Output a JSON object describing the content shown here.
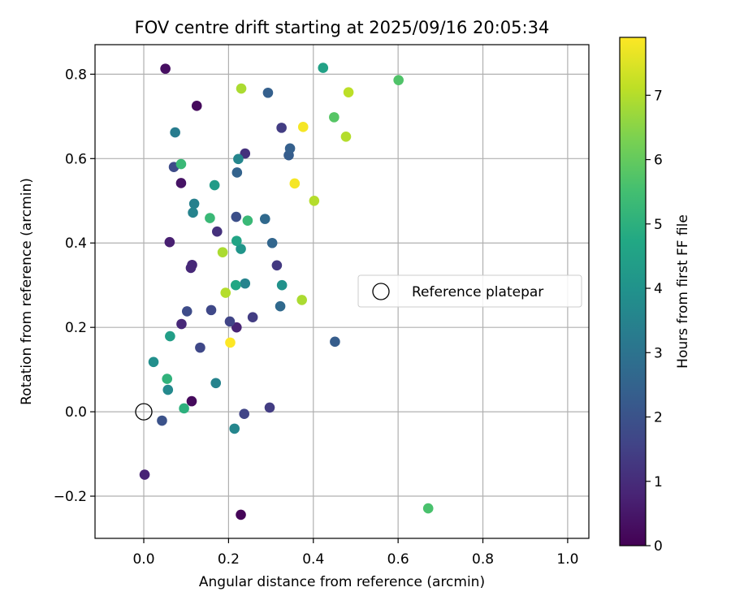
{
  "chart_data": {
    "type": "scatter",
    "title": "FOV centre drift starting at 2025/09/16 20:05:34",
    "xlabel": "Angular distance from reference (arcmin)",
    "ylabel": "Rotation from reference (arcmin)",
    "xlim": [
      -0.115,
      1.05
    ],
    "ylim": [
      -0.3,
      0.87
    ],
    "xticks": [
      0.0,
      0.2,
      0.4,
      0.6,
      0.8,
      1.0
    ],
    "xtick_labels": [
      "0.0",
      "0.2",
      "0.4",
      "0.6",
      "0.8",
      "1.0"
    ],
    "yticks": [
      -0.2,
      0.0,
      0.2,
      0.4,
      0.6,
      0.8
    ],
    "ytick_labels": [
      "−0.2",
      "0.0",
      "0.2",
      "0.4",
      "0.6",
      "0.8"
    ],
    "grid": true,
    "colorbar": {
      "label": "Hours from first FF file",
      "colormap": "viridis",
      "range": [
        0,
        7.9
      ],
      "ticks": [
        0,
        1,
        2,
        3,
        4,
        5,
        6,
        7
      ],
      "tick_labels": [
        "0",
        "1",
        "2",
        "3",
        "4",
        "5",
        "6",
        "7"
      ]
    },
    "legend": {
      "placement": "center-right",
      "entries": [
        {
          "label": "Reference platepar",
          "marker": "hollow-circle"
        }
      ]
    },
    "reference_point": {
      "x": 0.0,
      "y": 0.0
    },
    "series": [
      {
        "points": [
          {
            "x": 0.051,
            "y": 0.813,
            "c": 0.3
          },
          {
            "x": 0.125,
            "y": 0.725,
            "c": 0.2
          },
          {
            "x": 0.088,
            "y": 0.542,
            "c": 0.4
          },
          {
            "x": 0.061,
            "y": 0.402,
            "c": 0.7
          },
          {
            "x": 0.114,
            "y": 0.348,
            "c": 0.9
          },
          {
            "x": 0.111,
            "y": 0.341,
            "c": 0.9
          },
          {
            "x": 0.089,
            "y": 0.208,
            "c": 0.9
          },
          {
            "x": 0.113,
            "y": 0.025,
            "c": 0.2
          },
          {
            "x": 0.002,
            "y": -0.149,
            "c": 0.8
          },
          {
            "x": 0.229,
            "y": -0.244,
            "c": 0.1
          },
          {
            "x": 0.219,
            "y": 0.2,
            "c": 0.8
          },
          {
            "x": 0.239,
            "y": 0.612,
            "c": 1.1
          },
          {
            "x": 0.173,
            "y": 0.427,
            "c": 1.1
          },
          {
            "x": 0.325,
            "y": 0.673,
            "c": 1.4
          },
          {
            "x": 0.314,
            "y": 0.347,
            "c": 1.3
          },
          {
            "x": 0.257,
            "y": 0.224,
            "c": 1.4
          },
          {
            "x": 0.297,
            "y": 0.01,
            "c": 1.4
          },
          {
            "x": 0.237,
            "y": -0.005,
            "c": 1.6
          },
          {
            "x": 0.203,
            "y": 0.214,
            "c": 1.6
          },
          {
            "x": 0.159,
            "y": 0.241,
            "c": 1.7
          },
          {
            "x": 0.133,
            "y": 0.152,
            "c": 1.7
          },
          {
            "x": 0.102,
            "y": 0.238,
            "c": 1.8
          },
          {
            "x": 0.071,
            "y": 0.58,
            "c": 1.8
          },
          {
            "x": 0.218,
            "y": 0.462,
            "c": 1.9
          },
          {
            "x": 0.043,
            "y": -0.021,
            "c": 2.0
          },
          {
            "x": 0.451,
            "y": 0.166,
            "c": 2.3
          },
          {
            "x": 0.342,
            "y": 0.608,
            "c": 2.3
          },
          {
            "x": 0.345,
            "y": 0.624,
            "c": 2.4
          },
          {
            "x": 0.293,
            "y": 0.756,
            "c": 2.4
          },
          {
            "x": 0.22,
            "y": 0.567,
            "c": 2.5
          },
          {
            "x": 0.303,
            "y": 0.4,
            "c": 2.6
          },
          {
            "x": 0.286,
            "y": 0.457,
            "c": 2.7
          },
          {
            "x": 0.322,
            "y": 0.25,
            "c": 2.7
          },
          {
            "x": 0.074,
            "y": 0.662,
            "c": 3.3
          },
          {
            "x": 0.119,
            "y": 0.493,
            "c": 3.4
          },
          {
            "x": 0.116,
            "y": 0.472,
            "c": 3.5
          },
          {
            "x": 0.239,
            "y": 0.304,
            "c": 3.5
          },
          {
            "x": 0.223,
            "y": 0.599,
            "c": 3.6
          },
          {
            "x": 0.17,
            "y": 0.068,
            "c": 3.5
          },
          {
            "x": 0.214,
            "y": -0.04,
            "c": 3.6
          },
          {
            "x": 0.057,
            "y": 0.052,
            "c": 3.7
          },
          {
            "x": 0.023,
            "y": 0.118,
            "c": 3.9
          },
          {
            "x": 0.326,
            "y": 0.3,
            "c": 4.0
          },
          {
            "x": 0.229,
            "y": 0.386,
            "c": 4.1
          },
          {
            "x": 0.167,
            "y": 0.537,
            "c": 4.3
          },
          {
            "x": 0.062,
            "y": 0.179,
            "c": 4.4
          },
          {
            "x": 0.423,
            "y": 0.815,
            "c": 4.5
          },
          {
            "x": 0.219,
            "y": 0.405,
            "c": 4.6
          },
          {
            "x": 0.217,
            "y": 0.3,
            "c": 4.7
          },
          {
            "x": 0.095,
            "y": 0.008,
            "c": 5.0
          },
          {
            "x": 0.055,
            "y": 0.078,
            "c": 5.1
          },
          {
            "x": 0.156,
            "y": 0.459,
            "c": 5.3
          },
          {
            "x": 0.088,
            "y": 0.587,
            "c": 5.3
          },
          {
            "x": 0.245,
            "y": 0.453,
            "c": 5.3
          },
          {
            "x": 0.671,
            "y": -0.229,
            "c": 5.6
          },
          {
            "x": 0.601,
            "y": 0.786,
            "c": 5.7
          },
          {
            "x": 0.449,
            "y": 0.698,
            "c": 5.8
          },
          {
            "x": 0.373,
            "y": 0.265,
            "c": 6.9
          },
          {
            "x": 0.23,
            "y": 0.766,
            "c": 6.9
          },
          {
            "x": 0.186,
            "y": 0.378,
            "c": 6.9
          },
          {
            "x": 0.193,
            "y": 0.282,
            "c": 7.0
          },
          {
            "x": 0.402,
            "y": 0.5,
            "c": 7.0
          },
          {
            "x": 0.477,
            "y": 0.652,
            "c": 7.0
          },
          {
            "x": 0.483,
            "y": 0.757,
            "c": 7.1
          },
          {
            "x": 0.376,
            "y": 0.675,
            "c": 7.8
          },
          {
            "x": 0.356,
            "y": 0.541,
            "c": 7.8
          },
          {
            "x": 0.204,
            "y": 0.164,
            "c": 7.9
          }
        ]
      }
    ]
  }
}
